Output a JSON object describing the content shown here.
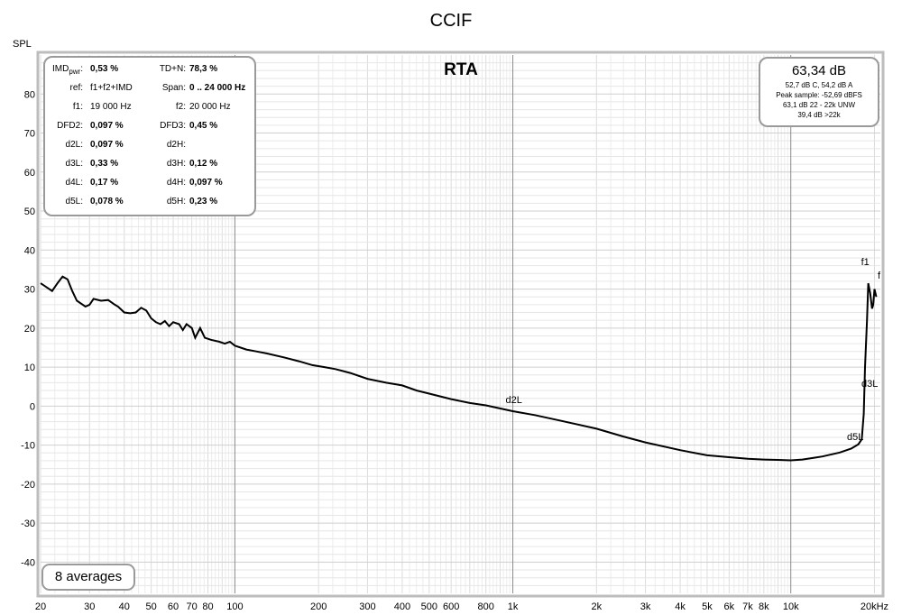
{
  "title": "CCIF",
  "subtitle": "RTA",
  "y_axis_label": "SPL",
  "stats": {
    "rows": [
      {
        "k1": "IMD",
        "k1_sub": "pwr",
        "k1_suffix": ":",
        "v1": "0,53 %",
        "k2": "TD+N:",
        "v2": "78,3 %",
        "bold1": true,
        "bold2": true
      },
      {
        "k1": "ref:",
        "v1": "f1+f2+IMD",
        "k2": "Span:",
        "v2": "0 .. 24 000 Hz",
        "bold1": false,
        "bold2": true
      },
      {
        "k1": "f1:",
        "v1": "19 000 Hz",
        "k2": "f2:",
        "v2": "20 000 Hz",
        "bold1": false,
        "bold2": false
      },
      {
        "k1": "DFD2:",
        "v1": "0,097 %",
        "k2": "DFD3:",
        "v2": "0,45 %",
        "bold1": true,
        "bold2": true
      },
      {
        "k1": "d2L:",
        "v1": "0,097 %",
        "k2": "d2H:",
        "v2": "",
        "bold1": true,
        "bold2": true
      },
      {
        "k1": "d3L:",
        "v1": "0,33 %",
        "k2": "d3H:",
        "v2": "0,12 %",
        "bold1": true,
        "bold2": true
      },
      {
        "k1": "d4L:",
        "v1": "0,17 %",
        "k2": "d4H:",
        "v2": "0,097 %",
        "bold1": true,
        "bold2": true
      },
      {
        "k1": "d5L:",
        "v1": "0,078 %",
        "k2": "d5H:",
        "v2": "0,23 %",
        "bold1": true,
        "bold2": true
      }
    ]
  },
  "level": {
    "main": "63,34 dB",
    "lines": [
      "52,7 dB C, 54,2 dB A",
      "Peak sample: -52,69 dBFS",
      "63,1 dB 22 - 22k UNW",
      "39,4 dB >22k"
    ]
  },
  "averages": "8 averages",
  "colors": {
    "curve": "#000000",
    "marker": "#1a1aa0",
    "grid_major": "#8a8a8a",
    "grid_minor": "#dcdcdc",
    "frame": "#bdbdbd"
  },
  "chart_data": {
    "type": "line",
    "x_scale": "log",
    "xlim": [
      20,
      21000
    ],
    "ylim": [
      -48,
      90
    ],
    "grid": true,
    "x_ticks": [
      {
        "v": 20,
        "label": "20"
      },
      {
        "v": 30,
        "label": "30"
      },
      {
        "v": 40,
        "label": "40"
      },
      {
        "v": 50,
        "label": "50"
      },
      {
        "v": 60,
        "label": "60"
      },
      {
        "v": 70,
        "label": "70"
      },
      {
        "v": 80,
        "label": "80"
      },
      {
        "v": 100,
        "label": "100"
      },
      {
        "v": 200,
        "label": "200"
      },
      {
        "v": 300,
        "label": "300"
      },
      {
        "v": 400,
        "label": "400"
      },
      {
        "v": 500,
        "label": "500"
      },
      {
        "v": 600,
        "label": "600"
      },
      {
        "v": 800,
        "label": "800"
      },
      {
        "v": 1000,
        "label": "1k"
      },
      {
        "v": 2000,
        "label": "2k"
      },
      {
        "v": 3000,
        "label": "3k"
      },
      {
        "v": 4000,
        "label": "4k"
      },
      {
        "v": 5000,
        "label": "5k"
      },
      {
        "v": 6000,
        "label": "6k"
      },
      {
        "v": 7000,
        "label": "7k"
      },
      {
        "v": 8000,
        "label": "8k"
      },
      {
        "v": 10000,
        "label": "10k"
      },
      {
        "v": 20000,
        "label": "20kHz"
      }
    ],
    "y_ticks": [
      80,
      70,
      60,
      50,
      40,
      30,
      20,
      10,
      0,
      -10,
      -20,
      -30,
      -40
    ],
    "series": [
      {
        "points": [
          [
            20,
            31.5
          ],
          [
            21,
            30.5
          ],
          [
            22,
            29.5
          ],
          [
            23,
            31.5
          ],
          [
            24,
            33.2
          ],
          [
            25,
            32.5
          ],
          [
            26,
            29.5
          ],
          [
            27,
            27
          ],
          [
            29,
            25.5
          ],
          [
            30,
            26
          ],
          [
            31,
            27.5
          ],
          [
            33,
            27
          ],
          [
            35,
            27.2
          ],
          [
            37,
            26
          ],
          [
            38,
            25.5
          ],
          [
            40,
            24
          ],
          [
            42,
            23.8
          ],
          [
            44,
            24
          ],
          [
            46,
            25.2
          ],
          [
            48,
            24.5
          ],
          [
            50,
            22.5
          ],
          [
            52,
            21.5
          ],
          [
            54,
            21
          ],
          [
            56,
            21.8
          ],
          [
            58,
            20.5
          ],
          [
            60,
            21.5
          ],
          [
            63,
            21
          ],
          [
            65,
            19.5
          ],
          [
            67,
            21
          ],
          [
            70,
            20
          ],
          [
            72,
            17.5
          ],
          [
            75,
            20
          ],
          [
            78,
            17.5
          ],
          [
            82,
            17
          ],
          [
            88,
            16.5
          ],
          [
            92,
            16
          ],
          [
            96,
            16.5
          ],
          [
            100,
            15.5
          ],
          [
            110,
            14.5
          ],
          [
            120,
            14
          ],
          [
            130,
            13.5
          ],
          [
            150,
            12.5
          ],
          [
            170,
            11.5
          ],
          [
            190,
            10.5
          ],
          [
            210,
            10
          ],
          [
            230,
            9.5
          ],
          [
            260,
            8.5
          ],
          [
            300,
            7
          ],
          [
            350,
            6
          ],
          [
            400,
            5.3
          ],
          [
            450,
            4
          ],
          [
            500,
            3.2
          ],
          [
            600,
            1.8
          ],
          [
            700,
            0.8
          ],
          [
            800,
            0.2
          ],
          [
            1000,
            -1.3
          ],
          [
            1200,
            -2.3
          ],
          [
            1500,
            -3.8
          ],
          [
            2000,
            -5.8
          ],
          [
            2500,
            -7.8
          ],
          [
            3000,
            -9.3
          ],
          [
            4000,
            -11.3
          ],
          [
            5000,
            -12.6
          ],
          [
            6000,
            -13.1
          ],
          [
            7000,
            -13.5
          ],
          [
            8000,
            -13.7
          ],
          [
            9000,
            -13.8
          ],
          [
            10000,
            -13.9
          ],
          [
            11000,
            -13.7
          ],
          [
            12000,
            -13.3
          ],
          [
            13000,
            -12.9
          ],
          [
            15000,
            -11.9
          ],
          [
            16500,
            -10.9
          ],
          [
            17500,
            -9.8
          ],
          [
            18000,
            -8.5
          ],
          [
            18300,
            -2
          ],
          [
            18500,
            10
          ],
          [
            18800,
            22
          ],
          [
            19000,
            31.5
          ],
          [
            19300,
            29
          ],
          [
            19600,
            25
          ],
          [
            19800,
            26
          ],
          [
            20000,
            30
          ],
          [
            20300,
            28
          ]
        ]
      }
    ],
    "markers": [
      {
        "label": "f1",
        "x": 19000,
        "y": 31.5
      },
      {
        "label": "f",
        "x": 20300,
        "y": 28
      },
      {
        "label": "d2L",
        "x": 1000,
        "y": -1.3
      },
      {
        "label": "d3L",
        "x": 17000,
        "y": 3
      },
      {
        "label": "d5L",
        "x": 15000,
        "y": -9.5
      }
    ]
  }
}
